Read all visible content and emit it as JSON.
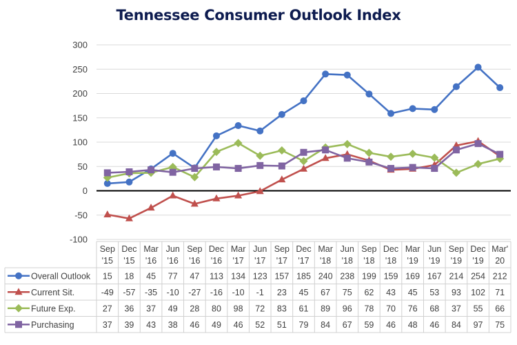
{
  "chart_data": {
    "type": "line",
    "title": "Tennessee Consumer Outlook Index",
    "xlabel": "",
    "ylabel": "",
    "ylim": [
      -100,
      300
    ],
    "yticks": [
      300,
      250,
      200,
      150,
      100,
      50,
      0,
      -50,
      -100
    ],
    "grid": true,
    "legend": "data-table-left",
    "categories": [
      [
        "Sep",
        "'15"
      ],
      [
        "Dec",
        "'15"
      ],
      [
        "Mar",
        "'16"
      ],
      [
        "Jun",
        "'16"
      ],
      [
        "Sep",
        "'16"
      ],
      [
        "Dec",
        "'16"
      ],
      [
        "Mar",
        "'17"
      ],
      [
        "Jun",
        "'17"
      ],
      [
        "Sep",
        "'17"
      ],
      [
        "Dec",
        "'17"
      ],
      [
        "Mar",
        "'18"
      ],
      [
        "Jun",
        "'18"
      ],
      [
        "Sep",
        "'18"
      ],
      [
        "Dec",
        "'18"
      ],
      [
        "Mar",
        "'19"
      ],
      [
        "Jun",
        "'19"
      ],
      [
        "Sep",
        "'19"
      ],
      [
        "Dec",
        "'19"
      ],
      [
        "Mar'",
        "20"
      ]
    ],
    "series": [
      {
        "name": "Overall Outlook",
        "color": "#4472c4",
        "marker": "circle",
        "values": [
          15,
          18,
          45,
          77,
          47,
          113,
          134,
          123,
          157,
          185,
          240,
          238,
          199,
          159,
          169,
          167,
          214,
          254,
          212
        ]
      },
      {
        "name": "Current Sit.",
        "color": "#c0504d",
        "marker": "triangle",
        "values": [
          -49,
          -57,
          -35,
          -10,
          -27,
          -16,
          -10,
          -1,
          23,
          45,
          67,
          75,
          62,
          43,
          45,
          53,
          93,
          102,
          71
        ]
      },
      {
        "name": "Future Exp.",
        "color": "#9bbb59",
        "marker": "diamond",
        "values": [
          27,
          36,
          37,
          49,
          28,
          80,
          98,
          72,
          83,
          61,
          89,
          96,
          78,
          70,
          76,
          68,
          37,
          55,
          66
        ]
      },
      {
        "name": "Purchasing",
        "color": "#8064a2",
        "marker": "square",
        "values": [
          37,
          39,
          43,
          38,
          46,
          49,
          46,
          52,
          51,
          79,
          84,
          67,
          59,
          46,
          48,
          46,
          84,
          97,
          75
        ]
      }
    ]
  }
}
